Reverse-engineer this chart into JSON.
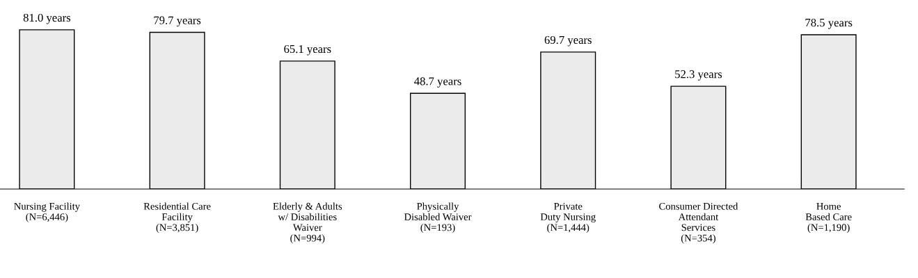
{
  "chart_data": {
    "type": "bar",
    "categories": [
      "Nursing Facility\n(N=6,446)",
      "Residential Care\nFacility\n(N=3,851)",
      "Elderly & Adults\nw/ Disabilities\nWaiver\n(N=994)",
      "Physically\nDisabled Waiver\n(N=193)",
      "Private\nDuty Nursing\n(N=1,444)",
      "Consumer Directed\nAttendant\nServices\n(N=354)",
      "Home\nBased Care\n(N=1,190)"
    ],
    "values": [
      81.0,
      79.7,
      65.1,
      48.7,
      69.7,
      52.3,
      78.5
    ],
    "value_labels": [
      "81.0 years",
      "79.7 years",
      "65.1 years",
      "48.7 years",
      "69.7 years",
      "52.3 years",
      "78.5 years"
    ],
    "color": "#ebebeb",
    "grid": false,
    "legend": false
  }
}
